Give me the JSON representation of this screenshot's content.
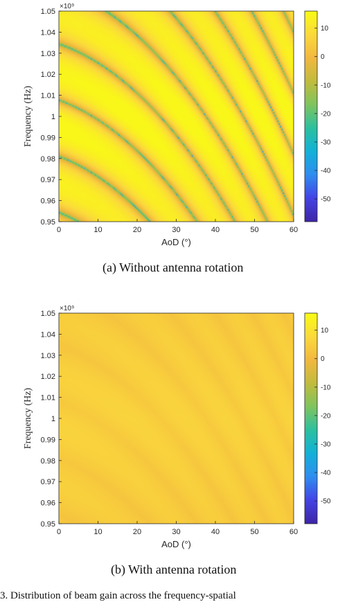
{
  "chart_data": [
    {
      "type": "heatmap",
      "panel": "a",
      "xlabel": "AoD (°)",
      "ylabel": "Frequency (Hz)",
      "xlim": [
        0,
        60
      ],
      "ylim": [
        0.95,
        1.05
      ],
      "y_exponent": "×10⁹",
      "xticks": [
        "0",
        "10",
        "20",
        "30",
        "40",
        "50",
        "60"
      ],
      "yticks": [
        "0.95",
        "0.96",
        "0.97",
        "0.98",
        "0.99",
        "1",
        "1.01",
        "1.02",
        "1.03",
        "1.04",
        "1.05"
      ],
      "colorbar": {
        "range": [
          -58,
          16
        ],
        "ticks": [
          "10",
          "0",
          "-10",
          "-20",
          "-30",
          "-40",
          "-50"
        ]
      },
      "colormap": [
        "#3e26a8",
        "#4444e6",
        "#2f8ef0",
        "#13b1d8",
        "#2cc0a0",
        "#7fc45f",
        "#c1bc3e",
        "#f2b83f",
        "#fbd93c",
        "#f9fb15"
      ],
      "description_of_field": "Curved null lines (deep blue) over yellow/orange background; nulls bend downward at low AoD and converge near AoD ≈ 25°, f = 0.95 GHz",
      "caption": "(a) Without antenna rotation"
    },
    {
      "type": "heatmap",
      "panel": "b",
      "xlabel": "AoD (°)",
      "ylabel": "Frequency (Hz)",
      "xlim": [
        0,
        60
      ],
      "ylim": [
        0.95,
        1.05
      ],
      "y_exponent": "×10⁹",
      "xticks": [
        "0",
        "10",
        "20",
        "30",
        "40",
        "50",
        "60"
      ],
      "yticks": [
        "0.95",
        "0.96",
        "0.97",
        "0.98",
        "0.99",
        "1",
        "1.01",
        "1.02",
        "1.03",
        "1.04",
        "1.05"
      ],
      "colorbar": {
        "range": [
          -58,
          16
        ],
        "ticks": [
          "10",
          "0",
          "-10",
          "-20",
          "-30",
          "-40",
          "-50"
        ]
      },
      "colormap": [
        "#3e26a8",
        "#4444e6",
        "#2f8ef0",
        "#13b1d8",
        "#2cc0a0",
        "#7fc45f",
        "#c1bc3e",
        "#f2b83f",
        "#fbd93c",
        "#f9fb15"
      ],
      "description_of_field": "Nearly uniform orange field with faint darker bands following the same curves; no deep nulls",
      "caption": "(b) With antenna rotation"
    }
  ],
  "footer_text": "3.  Distribution of beam gain across the frequency-spatial"
}
